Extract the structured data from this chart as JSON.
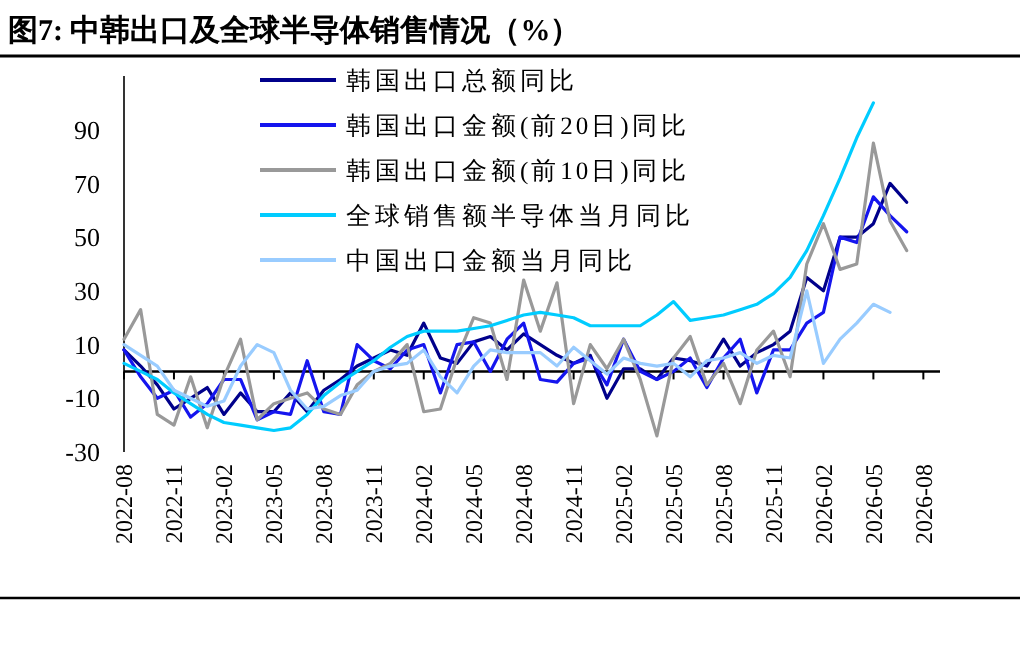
{
  "chart_data": {
    "type": "line",
    "title": "图7:  中韩出口及全球半导体销售情况（%）",
    "x": [
      "2022-08",
      "2022-09",
      "2022-10",
      "2022-11",
      "2022-12",
      "2023-01",
      "2023-02",
      "2023-03",
      "2023-04",
      "2023-05",
      "2023-06",
      "2023-07",
      "2023-08",
      "2023-09",
      "2023-10",
      "2023-11",
      "2023-12",
      "2024-01",
      "2024-02",
      "2024-03",
      "2024-04",
      "2024-05",
      "2024-06",
      "2024-07",
      "2024-08",
      "2024-09",
      "2024-10",
      "2024-11",
      "2024-12",
      "2025-01",
      "2025-02",
      "2025-03",
      "2025-04",
      "2025-05",
      "2025-06",
      "2025-07",
      "2025-08",
      "2025-09",
      "2025-10",
      "2025-11",
      "2025-12",
      "2026-01",
      "2026-02",
      "2026-03",
      "2026-04",
      "2026-05",
      "2026-06",
      "2026-07"
    ],
    "xlim": [
      "2022-08",
      "2026-09"
    ],
    "xticks": [
      "2022-08",
      "2022-11",
      "2023-02",
      "2023-05",
      "2023-08",
      "2023-11",
      "2024-02",
      "2024-05",
      "2024-08",
      "2024-11",
      "2025-02",
      "2025-05",
      "2025-08",
      "2025-11",
      "2026-02",
      "2026-05",
      "2026-08"
    ],
    "ylim": [
      -30,
      110
    ],
    "yticks": [
      -30,
      -10,
      10,
      30,
      50,
      70,
      90
    ],
    "legend": "top",
    "grid": false,
    "marker": "none",
    "line_style": "solid",
    "series": [
      {
        "name": "韩国出口总额同比",
        "color": "#00008b",
        "values": [
          8,
          2,
          -5,
          -14,
          -10,
          -6,
          -16,
          -8,
          -15,
          -15,
          -8,
          -15,
          -7,
          -3,
          2,
          5,
          8,
          6,
          18,
          5,
          3,
          11,
          13,
          8,
          14,
          10,
          6,
          3,
          6,
          -10,
          1,
          1,
          -3,
          5,
          4,
          2,
          12,
          2,
          7,
          10,
          15,
          35,
          30,
          50,
          50,
          55,
          70,
          63
        ]
      },
      {
        "name": "韩国出口金额(前20日)同比",
        "color": "#1515ee",
        "values": [
          8,
          -2,
          -10,
          -7,
          -17,
          -12,
          -3,
          -3,
          -18,
          -15,
          -16,
          4,
          -15,
          -16,
          10,
          4,
          1,
          8,
          10,
          -8,
          10,
          11,
          0,
          12,
          18,
          -3,
          -4,
          3,
          5,
          -5,
          12,
          0,
          -3,
          0,
          5,
          -6,
          5,
          12,
          -8,
          8,
          8,
          18,
          22,
          50,
          48,
          65,
          58,
          52
        ]
      },
      {
        "name": "韩国出口金额(前10日)同比",
        "color": "#999999",
        "values": [
          12,
          23,
          -16,
          -20,
          -2,
          -21,
          -2,
          12,
          -18,
          -12,
          -10,
          -8,
          -14,
          -16,
          -5,
          0,
          3,
          10,
          -15,
          -14,
          5,
          20,
          18,
          -3,
          34,
          15,
          33,
          -12,
          10,
          1,
          12,
          -3,
          -24,
          5,
          13,
          -5,
          3,
          -12,
          8,
          15,
          -2,
          40,
          55,
          38,
          40,
          85,
          56,
          45
        ]
      },
      {
        "name": "全球销售额半导体当月同比",
        "color": "#00ccff",
        "values": [
          3,
          0,
          -3,
          -8,
          -12,
          -16,
          -19,
          -20,
          -21,
          -22,
          -21,
          -16,
          -9,
          -4,
          0,
          4,
          9,
          13,
          15,
          15,
          15,
          16,
          17,
          19,
          21,
          22,
          21,
          20,
          17,
          17,
          17,
          17,
          21,
          26,
          19,
          20,
          21,
          23,
          25,
          29,
          35,
          45,
          58,
          72,
          87,
          100,
          null,
          null
        ]
      },
      {
        "name": "中国出口金额当月同比",
        "color": "#99ccff",
        "values": [
          10,
          6,
          2,
          -7,
          -10,
          -13,
          -11,
          2,
          10,
          7,
          -7,
          -14,
          -13,
          -9,
          -7,
          0,
          2,
          3,
          8,
          -2,
          -8,
          2,
          8,
          7,
          7,
          7,
          2,
          9,
          4,
          -1,
          5,
          3,
          2,
          3,
          -2,
          4,
          5,
          7,
          3,
          6,
          5,
          30,
          3,
          12,
          18,
          25,
          22,
          null
        ]
      }
    ]
  }
}
